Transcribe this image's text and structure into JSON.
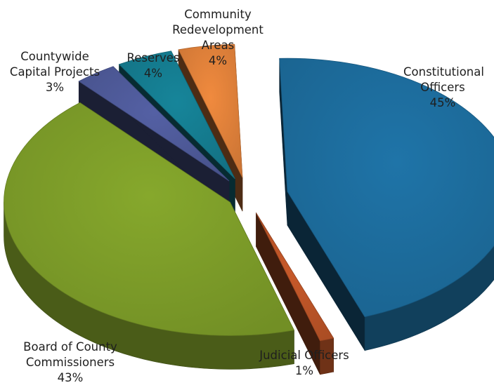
{
  "chart_data": {
    "type": "pie",
    "style": "3d-exploded",
    "slices": [
      {
        "name": "Constitutional Officers",
        "label_lines": [
          "Constitutional",
          "Officers"
        ],
        "value": 45,
        "value_label": "45%",
        "color": "#1f74a8"
      },
      {
        "name": "Judicial Officers",
        "label_lines": [
          "Judicial Officers"
        ],
        "value": 1,
        "value_label": "1%",
        "color": "#c95a2a"
      },
      {
        "name": "Board of County Commissioners",
        "label_lines": [
          "Board of County",
          "Commissioners"
        ],
        "value": 43,
        "value_label": "43%",
        "color": "#86a82c"
      },
      {
        "name": "Countywide Capital Projects",
        "label_lines": [
          "Countywide",
          "Capital Projects"
        ],
        "value": 3,
        "value_label": "3%",
        "color": "#5460a4"
      },
      {
        "name": "Reserves",
        "label_lines": [
          "Reserves"
        ],
        "value": 4,
        "value_label": "4%",
        "color": "#16859a"
      },
      {
        "name": "Community Redevelopment Areas",
        "label_lines": [
          "Community",
          "Redevelopment",
          "Areas"
        ],
        "value": 4,
        "value_label": "4%",
        "color": "#f08a3e"
      }
    ],
    "legend": "none"
  }
}
